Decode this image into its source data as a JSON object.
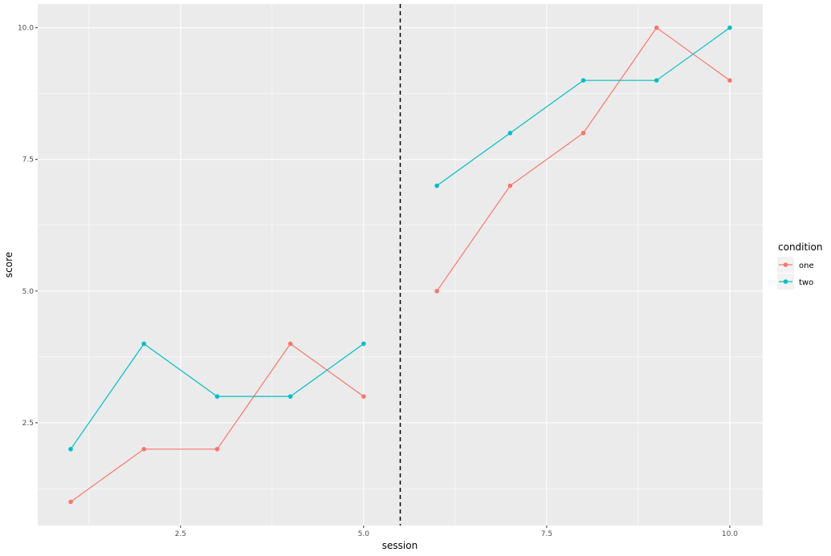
{
  "chart_data": {
    "type": "line",
    "xlabel": "session",
    "ylabel": "score",
    "xlim": [
      0.55,
      10.45
    ],
    "ylim": [
      0.55,
      10.45
    ],
    "x_ticks": [
      2.5,
      5.0,
      7.5,
      10.0
    ],
    "x_tick_labels": [
      "2.5",
      "5.0",
      "7.5",
      "10.0"
    ],
    "y_ticks": [
      2.5,
      5.0,
      7.5,
      10.0
    ],
    "y_tick_labels": [
      "2.5",
      "5.0",
      "7.5",
      "10.0"
    ],
    "grid": true,
    "vline": {
      "x": 5.5,
      "style": "dashed",
      "color": "#000000"
    },
    "legend": {
      "title": "condition",
      "position": "right"
    },
    "series": [
      {
        "name": "one",
        "color": "#F8766D",
        "segments": [
          {
            "x": [
              1,
              2,
              3,
              4,
              5
            ],
            "y": [
              1,
              2,
              2,
              4,
              3
            ]
          },
          {
            "x": [
              6,
              7,
              8,
              9,
              10
            ],
            "y": [
              5,
              7,
              8,
              10,
              9
            ]
          }
        ]
      },
      {
        "name": "two",
        "color": "#00BFC4",
        "segments": [
          {
            "x": [
              1,
              2,
              3,
              4,
              5
            ],
            "y": [
              2,
              4,
              3,
              3,
              4
            ]
          },
          {
            "x": [
              6,
              7,
              8,
              9,
              10
            ],
            "y": [
              7,
              8,
              9,
              9,
              10
            ]
          }
        ]
      }
    ]
  }
}
